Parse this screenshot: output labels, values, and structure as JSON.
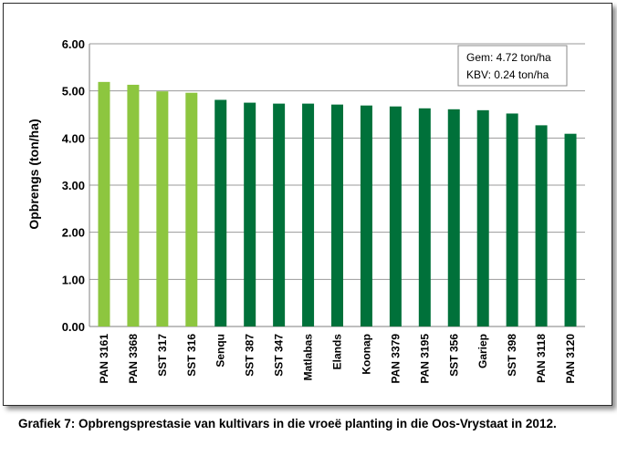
{
  "chart_data": {
    "type": "bar",
    "ylabel": "Opbrengs (ton/ha)",
    "xlabel": "",
    "ylim": [
      0,
      6
    ],
    "yticks": [
      "0.00",
      "1.00",
      "2.00",
      "3.00",
      "4.00",
      "5.00",
      "6.00"
    ],
    "grid": true,
    "categories": [
      "PAN 3161",
      "PAN 3368",
      "SST 317",
      "SST 316",
      "Senqu",
      "SST 387",
      "SST 347",
      "Matlabas",
      "Elands",
      "Koonap",
      "PAN 3379",
      "PAN 3195",
      "SST 356",
      "Gariep",
      "SST 398",
      "PAN 3118",
      "PAN 3120"
    ],
    "values": [
      5.19,
      5.13,
      4.99,
      4.96,
      4.81,
      4.75,
      4.73,
      4.73,
      4.71,
      4.69,
      4.67,
      4.63,
      4.61,
      4.59,
      4.52,
      4.27,
      4.09
    ],
    "highlight_count": 4,
    "colors": {
      "highlight": "#8dc63f",
      "normal": "#00713a",
      "grid": "#9a9a9a",
      "axis": "#7f7f7f"
    },
    "stats_box": {
      "line1": "Gem:  4.72 ton/ha",
      "line2": "KBV:   0.24 ton/ha"
    }
  },
  "caption": "Grafiek 7: Opbrengsprestasie van kultivars in die vroeë planting in die Oos-Vrystaat in 2012."
}
